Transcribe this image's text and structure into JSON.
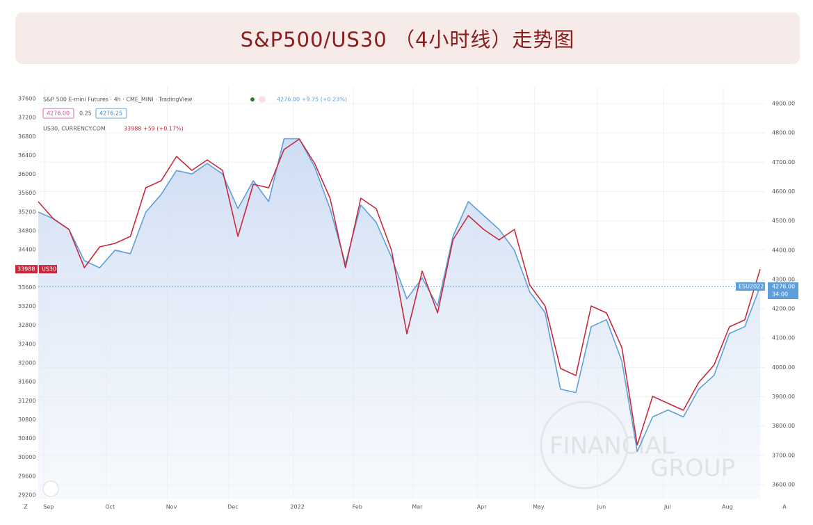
{
  "header": {
    "title": "S&P500/US30 （4小时线）走势图"
  },
  "chart_data": {
    "type": "line",
    "series": [
      {
        "name": "S&P 500 E-mini Futures · 4h · CME_MINI · TradingView",
        "color": "#5d9fdb",
        "axis": "y2",
        "values": [
          4530,
          4507,
          4471,
          4364,
          4340,
          4400,
          4388,
          4530,
          4590,
          4672,
          4660,
          4696,
          4660,
          4542,
          4637,
          4566,
          4780,
          4780,
          4684,
          4542,
          4353,
          4554,
          4495,
          4376,
          4234,
          4305,
          4210,
          4447,
          4566,
          4518,
          4471,
          4400,
          4258,
          4187,
          3926,
          3914,
          4139,
          4163,
          4021,
          3713,
          3831,
          3855,
          3831,
          3926,
          3973,
          4116,
          4139,
          4276
        ]
      },
      {
        "name": "US30, CURRENCY.COM",
        "color": "#c8283c",
        "values": [
          35419,
          35051,
          34830,
          34019,
          34461,
          34535,
          34682,
          35714,
          35861,
          36377,
          36082,
          36303,
          36082,
          34682,
          35787,
          35714,
          36524,
          36745,
          36230,
          35493,
          34019,
          35493,
          35272,
          34387,
          32619,
          33945,
          33061,
          34608,
          35124,
          34830,
          34608,
          34830,
          33651,
          33209,
          31883,
          31735,
          33209,
          33061,
          32324,
          30261,
          31293,
          31146,
          30998,
          31588,
          31956,
          32766,
          32914,
          33988
        ]
      }
    ],
    "xlim": [
      0,
      47
    ],
    "xticks": [
      {
        "value": 0.4,
        "label": "Sep"
      },
      {
        "value": 4.4,
        "label": "Oct"
      },
      {
        "value": 8.4,
        "label": "Nov"
      },
      {
        "value": 12.4,
        "label": "Dec"
      },
      {
        "value": 16.6,
        "label": "2022"
      },
      {
        "value": 20.5,
        "label": "Feb"
      },
      {
        "value": 24.4,
        "label": "Mar"
      },
      {
        "value": 28.6,
        "label": "Apr"
      },
      {
        "value": 32.3,
        "label": "May"
      },
      {
        "value": 36.4,
        "label": "Jun"
      },
      {
        "value": 40.7,
        "label": "Jul"
      },
      {
        "value": 44.6,
        "label": "Aug"
      }
    ],
    "ylim": [
      29200,
      37600
    ],
    "yticks": [
      29200,
      29600,
      30000,
      30400,
      30800,
      31200,
      31600,
      32000,
      32400,
      32800,
      33200,
      33600,
      34000,
      34400,
      34800,
      35200,
      35600,
      36000,
      36400,
      36800,
      37200,
      37600
    ],
    "y2lim": [
      3600,
      4900
    ],
    "y2ticks": [
      {
        "value": 3600,
        "label": "3600.00"
      },
      {
        "value": 3700,
        "label": "3700.00"
      },
      {
        "value": 3800,
        "label": "3800.00"
      },
      {
        "value": 3900,
        "label": "3900.00"
      },
      {
        "value": 4000,
        "label": "4000.00"
      },
      {
        "value": 4100,
        "label": "4100.00"
      },
      {
        "value": 4200,
        "label": "4200.00"
      },
      {
        "value": 4300,
        "label": "4300.00"
      },
      {
        "value": 4400,
        "label": "4400.00"
      },
      {
        "value": 4500,
        "label": "4500.00"
      },
      {
        "value": 4600,
        "label": "4600.00"
      },
      {
        "value": 4700,
        "label": "4700.00"
      },
      {
        "value": 4800,
        "label": "4800.00"
      },
      {
        "value": 4900,
        "label": "4900.00"
      }
    ],
    "grid": true,
    "price_line": 4276,
    "legend_quotes": [
      "4276.00 +9.75 (+0.23%)",
      "33988 +59 (+0.17%)"
    ],
    "legend_boxes": [
      "4276.00",
      "0.25",
      "4276.25"
    ],
    "price_tags": [
      "33988",
      "US30",
      "ESU2022",
      "4276.00",
      "34:00"
    ],
    "watermark": [
      "FINANCIAL",
      "GROUP"
    ],
    "axis_buttons": [
      "Z",
      "A"
    ]
  }
}
